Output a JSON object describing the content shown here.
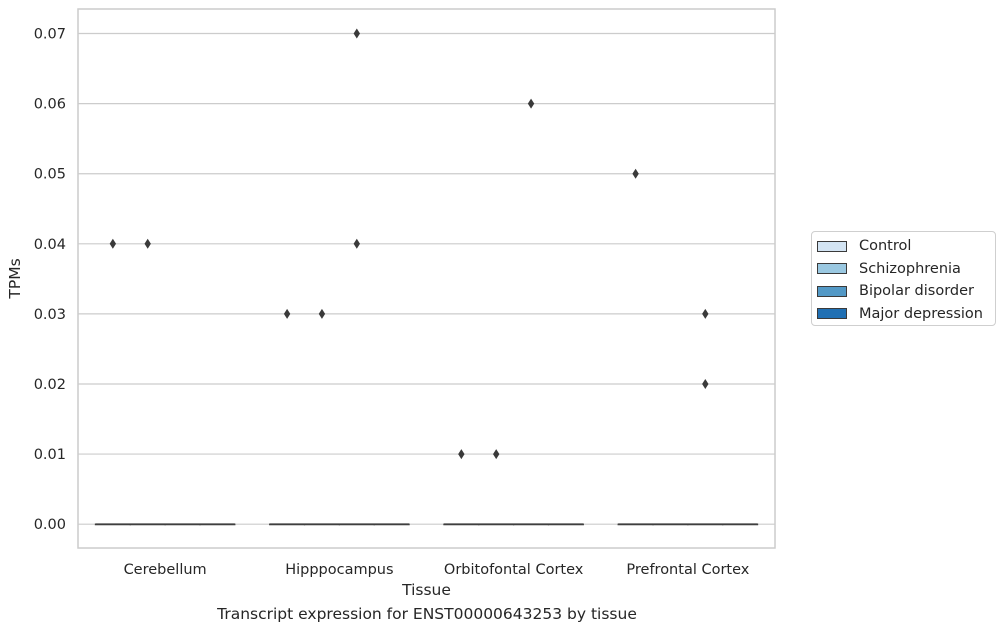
{
  "chart_data": {
    "type": "box",
    "xlabel": "Tissue",
    "ylabel": "TPMs",
    "caption": "Transcript expression for ENST00000643253 by tissue",
    "categories": [
      "Cerebellum",
      "Hipppocampus",
      "Orbitofontal Cortex",
      "Prefrontal Cortex"
    ],
    "ylim": [
      -0.0034,
      0.0735
    ],
    "yticks": [
      0.0,
      0.01,
      0.02,
      0.03,
      0.04,
      0.05,
      0.06,
      0.07
    ],
    "ytick_labels": [
      "0.00",
      "0.01",
      "0.02",
      "0.03",
      "0.04",
      "0.05",
      "0.06",
      "0.07"
    ],
    "grid": "horizontal",
    "legend_position": "right",
    "series": [
      {
        "name": "Control",
        "color": "#d3e4f3",
        "boxes": [
          {
            "median": 0,
            "q1": 0,
            "q3": 0
          },
          {
            "median": 0,
            "q1": 0,
            "q3": 0
          },
          {
            "median": 0,
            "q1": 0,
            "q3": 0
          },
          {
            "median": 0,
            "q1": 0,
            "q3": 0
          }
        ],
        "outliers": [
          [
            0.04
          ],
          [
            0.03
          ],
          [
            0.01
          ],
          [
            0.05
          ]
        ]
      },
      {
        "name": "Schizophrenia",
        "color": "#9ac8e1",
        "boxes": [
          {
            "median": 0,
            "q1": 0,
            "q3": 0
          },
          {
            "median": 0,
            "q1": 0,
            "q3": 0
          },
          {
            "median": 0,
            "q1": 0,
            "q3": 0
          },
          {
            "median": 0,
            "q1": 0,
            "q3": 0
          }
        ],
        "outliers": [
          [
            0.04
          ],
          [
            0.03
          ],
          [
            0.01
          ],
          []
        ]
      },
      {
        "name": "Bipolar disorder",
        "color": "#5399c6",
        "boxes": [
          {
            "median": 0,
            "q1": 0,
            "q3": 0
          },
          {
            "median": 0,
            "q1": 0,
            "q3": 0
          },
          {
            "median": 0,
            "q1": 0,
            "q3": 0
          },
          {
            "median": 0,
            "q1": 0,
            "q3": 0
          }
        ],
        "outliers": [
          [],
          [
            0.07,
            0.04
          ],
          [
            0.06
          ],
          [
            0.03,
            0.02
          ]
        ]
      },
      {
        "name": "Major depression",
        "color": "#2070b4",
        "boxes": [
          {
            "median": 0,
            "q1": 0,
            "q3": 0
          },
          {
            "median": 0,
            "q1": 0,
            "q3": 0
          },
          {
            "median": 0,
            "q1": 0,
            "q3": 0
          },
          {
            "median": 0,
            "q1": 0,
            "q3": 0
          }
        ],
        "outliers": [
          [],
          [],
          [],
          []
        ]
      }
    ]
  }
}
